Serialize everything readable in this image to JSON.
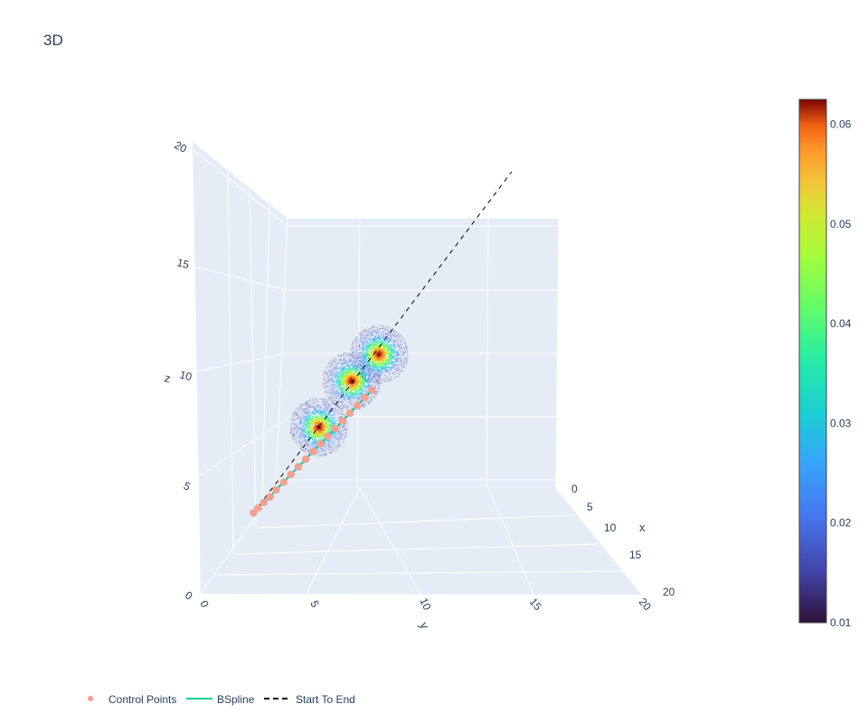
{
  "chart_data": {
    "type": "scatter3d",
    "title": "3D",
    "axes": {
      "x": {
        "label": "x",
        "range": [
          0,
          20
        ],
        "ticks": [
          "0",
          "5",
          "10",
          "15",
          "20"
        ]
      },
      "y": {
        "label": "y",
        "range": [
          0,
          20
        ],
        "ticks": [
          "0",
          "5",
          "10",
          "15",
          "20"
        ]
      },
      "z": {
        "label": "z",
        "range": [
          0,
          20
        ],
        "ticks": [
          "0",
          "5",
          "10",
          "15",
          "20"
        ]
      }
    },
    "start_to_end": {
      "start": [
        4,
        4,
        4
      ],
      "end": [
        20,
        20,
        20
      ]
    },
    "control_points": [
      [
        4.0,
        4.0,
        4.0
      ],
      [
        4.3,
        4.2,
        4.2
      ],
      [
        4.7,
        4.4,
        4.4
      ],
      [
        5.1,
        4.7,
        4.6
      ],
      [
        5.5,
        5.0,
        4.9
      ],
      [
        6.0,
        5.3,
        5.2
      ],
      [
        6.5,
        5.6,
        5.5
      ],
      [
        7.0,
        5.9,
        5.8
      ],
      [
        7.5,
        6.2,
        6.1
      ],
      [
        8.0,
        6.5,
        6.4
      ],
      [
        8.5,
        6.8,
        6.7
      ],
      [
        9.0,
        7.1,
        7.0
      ],
      [
        9.5,
        7.4,
        7.3
      ],
      [
        10.0,
        7.7,
        7.6
      ],
      [
        10.5,
        8.0,
        7.9
      ],
      [
        11.0,
        8.3,
        8.2
      ],
      [
        11.5,
        8.6,
        8.5
      ],
      [
        12.0,
        8.9,
        8.8
      ]
    ],
    "density_clusters": [
      {
        "center": [
          8.3,
          7.3,
          7.9
        ],
        "radius": 2.0
      },
      {
        "center": [
          10.6,
          8.6,
          10.0
        ],
        "radius": 2.0
      },
      {
        "center": [
          12.2,
          10.4,
          11.1
        ],
        "radius": 2.0
      }
    ],
    "colorbar": {
      "colorscale": "Turbo",
      "min": 0.01,
      "max": 0.0625,
      "ticks": [
        "0.01",
        "0.02",
        "0.03",
        "0.04",
        "0.05",
        "0.06"
      ]
    },
    "legend": {
      "placement": "bottom-left",
      "items": [
        {
          "name": "Control Points",
          "color": "#f4a090",
          "symbol": "dot"
        },
        {
          "name": "BSpline",
          "color": "#00cc96",
          "symbol": "line"
        },
        {
          "name": "Start To End",
          "color": "#000000",
          "symbol": "dash"
        }
      ]
    },
    "colors": {
      "scene_bg": "#e5ecf6",
      "grid": "#ffffff",
      "text": "#2a3f5f",
      "marker": "#f4a090"
    }
  }
}
